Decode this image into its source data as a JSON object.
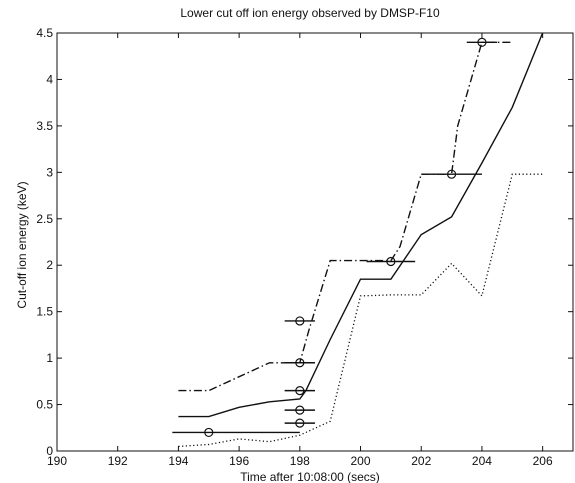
{
  "chart_data": {
    "type": "line",
    "title": "Lower cut off ion energy observed by DMSP-F10",
    "xlabel": "Time after 10:08:00 (secs)",
    "ylabel": "Cut-off ion energy (keV)",
    "xlim": [
      190,
      207
    ],
    "ylim": [
      0,
      4.5
    ],
    "xticks": [
      190,
      192,
      194,
      196,
      198,
      200,
      202,
      204,
      206
    ],
    "yticks": [
      0,
      0.5,
      1,
      1.5,
      2,
      2.5,
      3,
      3.5,
      4,
      4.5
    ],
    "grid": false,
    "series": [
      {
        "style": "solid",
        "x": [
          194,
          195,
          196,
          197,
          198,
          198.2,
          199,
          200,
          201,
          202,
          203,
          204,
          205,
          206
        ],
        "y": [
          0.37,
          0.37,
          0.47,
          0.53,
          0.56,
          0.65,
          1.2,
          1.85,
          1.85,
          2.33,
          2.52,
          3.1,
          3.7,
          4.5
        ]
      },
      {
        "style": "dashdot",
        "x": [
          194,
          195,
          197,
          198,
          198.3,
          199,
          201,
          201.3,
          202,
          203,
          203.2,
          204,
          205
        ],
        "y": [
          0.65,
          0.65,
          0.95,
          0.95,
          1.3,
          2.05,
          2.05,
          2.2,
          2.98,
          2.98,
          3.5,
          4.4,
          4.4
        ]
      },
      {
        "style": "dotted",
        "x": [
          194,
          195,
          196,
          197,
          198,
          199,
          200,
          201,
          202,
          203,
          204,
          205,
          206
        ],
        "y": [
          0.05,
          0.07,
          0.13,
          0.1,
          0.17,
          0.32,
          1.67,
          1.68,
          1.68,
          2.02,
          1.67,
          2.98,
          2.98
        ]
      }
    ],
    "points": [
      {
        "x": 195,
        "y": 0.2,
        "xerr_low": 193.8,
        "xerr_high": 198
      },
      {
        "x": 198,
        "y": 0.3,
        "xerr_low": 197.5,
        "xerr_high": 198.5
      },
      {
        "x": 198,
        "y": 0.44,
        "xerr_low": 197.5,
        "xerr_high": 198.5
      },
      {
        "x": 198,
        "y": 0.65,
        "xerr_low": 197.5,
        "xerr_high": 198.5
      },
      {
        "x": 198,
        "y": 0.95,
        "xerr_low": 197.5,
        "xerr_high": 198.5
      },
      {
        "x": 198,
        "y": 1.4,
        "xerr_low": 197.5,
        "xerr_high": 198.5
      },
      {
        "x": 201,
        "y": 2.04,
        "xerr_low": 200.2,
        "xerr_high": 201.8
      },
      {
        "x": 203,
        "y": 2.98,
        "xerr_low": 202,
        "xerr_high": 204
      },
      {
        "x": 204,
        "y": 4.4,
        "xerr_low": 203.5,
        "xerr_high": 204.5
      }
    ]
  }
}
